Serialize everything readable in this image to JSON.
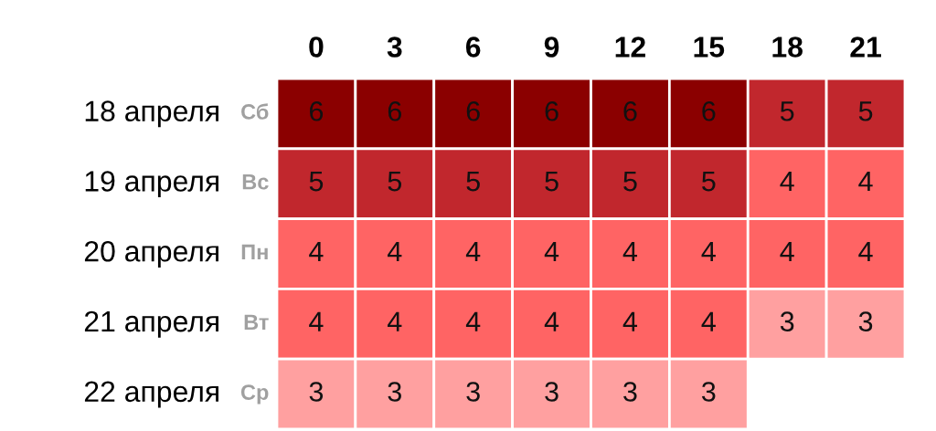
{
  "chart_data": {
    "type": "heatmap",
    "categories": [
      "0",
      "3",
      "6",
      "9",
      "12",
      "15",
      "18",
      "21"
    ],
    "y_categories": [
      "18 апреля",
      "19 апреля",
      "20 апреля",
      "21 апреля",
      "22 апреля"
    ],
    "y2_categories": [
      "Сб",
      "Вс",
      "Пн",
      "Вт",
      "Ср"
    ],
    "cells": [
      [
        6,
        6,
        6,
        6,
        6,
        6,
        5,
        5
      ],
      [
        5,
        5,
        5,
        5,
        5,
        5,
        4,
        4
      ],
      [
        4,
        4,
        4,
        4,
        4,
        4,
        4,
        4
      ],
      [
        4,
        4,
        4,
        4,
        4,
        4,
        3,
        3
      ],
      [
        3,
        3,
        3,
        3,
        3,
        3,
        null,
        null
      ]
    ],
    "colors": [
      [
        "#8b0000",
        "#8b0000",
        "#8b0000",
        "#8b0000",
        "#8b0000",
        "#8b0000",
        "#c1272d",
        "#c1272d"
      ],
      [
        "#c1272d",
        "#c1272d",
        "#c1272d",
        "#c1272d",
        "#c1272d",
        "#c1272d",
        "#ff6464",
        "#ff6464"
      ],
      [
        "#ff6464",
        "#ff6464",
        "#ff6464",
        "#ff6464",
        "#ff6464",
        "#ff6464",
        "#ff6464",
        "#ff6464"
      ],
      [
        "#ff6464",
        "#ff6464",
        "#ff6464",
        "#ff6464",
        "#ff6464",
        "#ff6464",
        "#ffa0a0",
        "#ffa0a0"
      ],
      [
        "#ffa0a0",
        "#ffa0a0",
        "#ffa0a0",
        "#ffa0a0",
        "#ffa0a0",
        "#ffa0a0",
        null,
        null
      ]
    ],
    "data_labels": true
  }
}
